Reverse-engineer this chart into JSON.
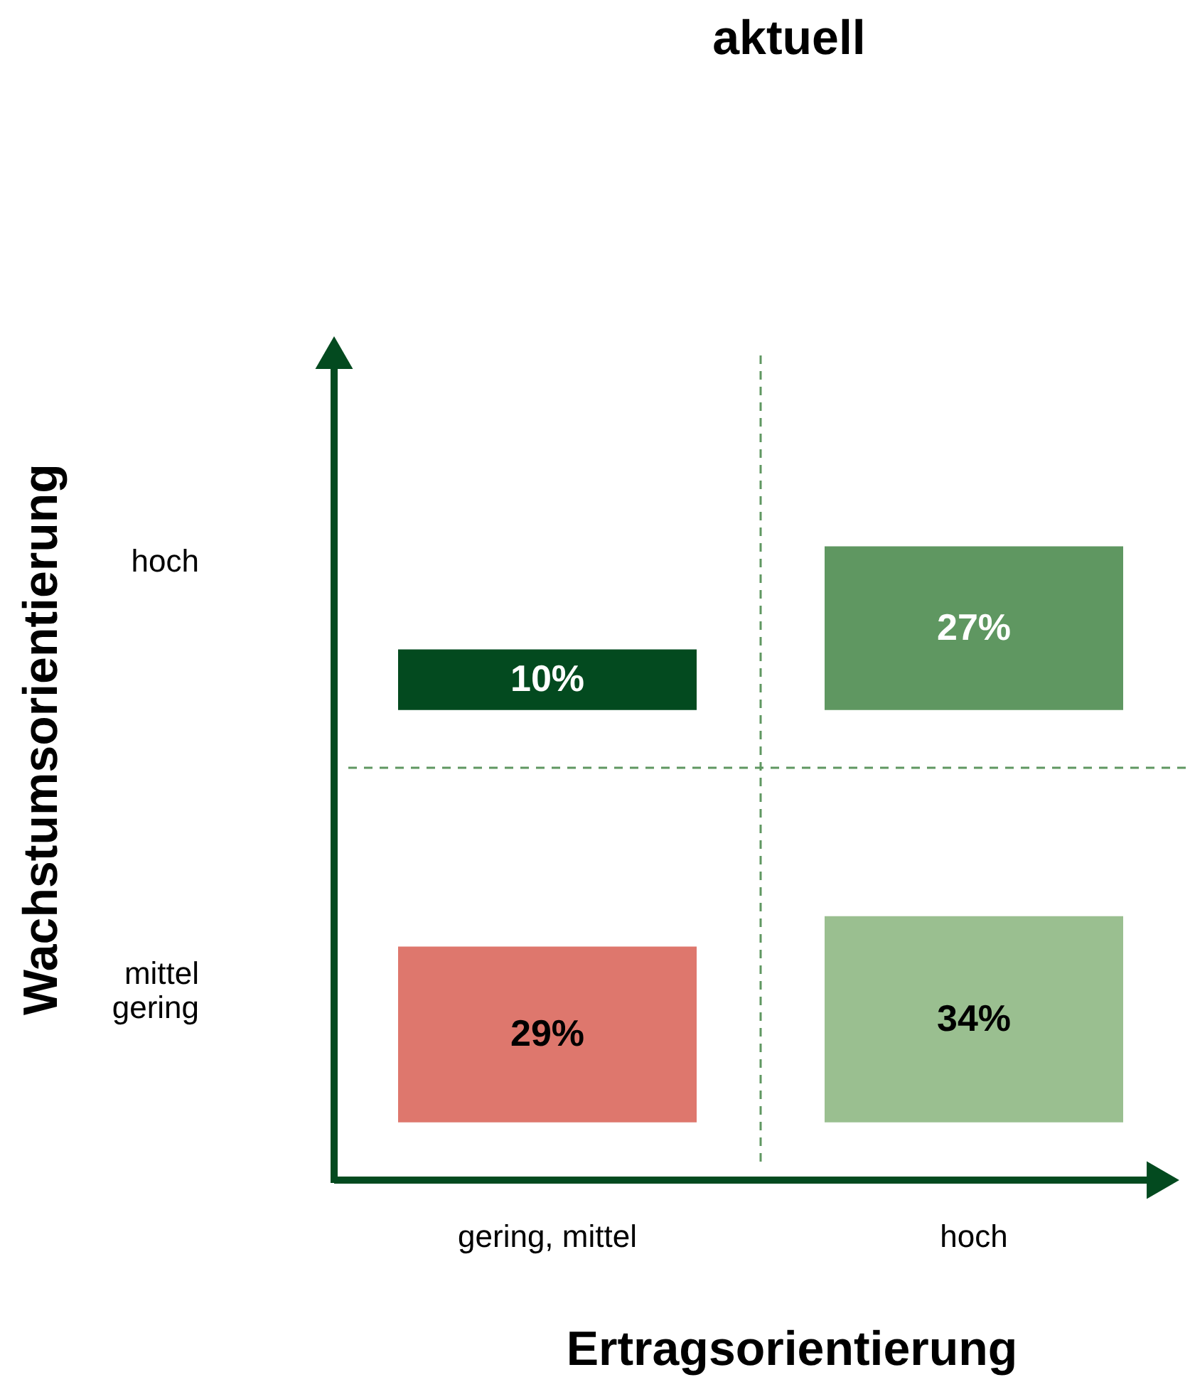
{
  "chart_data": {
    "type": "other",
    "title": "aktuell",
    "xlabel": "Ertragsorientierung",
    "ylabel": "Wachstumsorientierung",
    "categories": [
      "gering, mittel",
      "hoch"
    ],
    "y_categories": [
      "hoch",
      "mittel gering"
    ],
    "series": [
      {
        "values": [
          10,
          27
        ],
        "value_labels": [
          "10%",
          "27%"
        ],
        "colors": [
          "#034a1f",
          "#5f9761"
        ]
      },
      {
        "values": [
          29,
          34
        ],
        "value_labels": [
          "29%",
          "34%"
        ],
        "colors": [
          "#de776d",
          "#9abf90"
        ]
      }
    ]
  }
}
